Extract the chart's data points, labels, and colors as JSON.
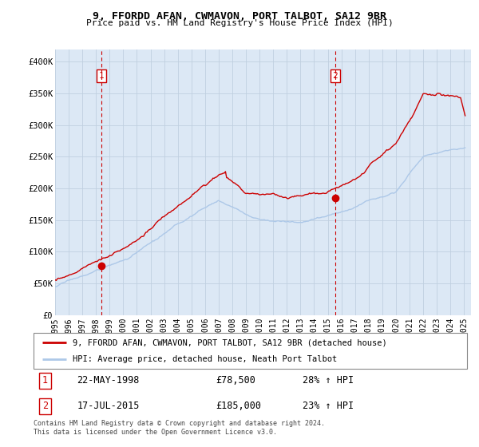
{
  "title": "9, FFORDD AFAN, CWMAVON, PORT TALBOT, SA12 9BR",
  "subtitle": "Price paid vs. HM Land Registry's House Price Index (HPI)",
  "xlim_start": 1995.0,
  "xlim_end": 2025.5,
  "ylim_min": 0,
  "ylim_max": 420000,
  "yticks": [
    0,
    50000,
    100000,
    150000,
    200000,
    250000,
    300000,
    350000,
    400000
  ],
  "ytick_labels": [
    "£0",
    "£50K",
    "£100K",
    "£150K",
    "£200K",
    "£250K",
    "£300K",
    "£350K",
    "£400K"
  ],
  "xticks": [
    1995,
    1996,
    1997,
    1998,
    1999,
    2000,
    2001,
    2002,
    2003,
    2004,
    2005,
    2006,
    2007,
    2008,
    2009,
    2010,
    2011,
    2012,
    2013,
    2014,
    2015,
    2016,
    2017,
    2018,
    2019,
    2020,
    2021,
    2022,
    2023,
    2024,
    2025
  ],
  "hpi_color": "#adc8e8",
  "price_color": "#cc0000",
  "vline_color": "#cc0000",
  "chart_bg": "#dce8f5",
  "marker1_x": 1998.38,
  "marker1_y": 78500,
  "marker2_x": 2015.54,
  "marker2_y": 185000,
  "sale1_label": "1",
  "sale1_date": "22-MAY-1998",
  "sale1_price": "£78,500",
  "sale1_hpi": "28% ↑ HPI",
  "sale2_label": "2",
  "sale2_date": "17-JUL-2015",
  "sale2_price": "£185,000",
  "sale2_hpi": "23% ↑ HPI",
  "legend_line1": "9, FFORDD AFAN, CWMAVON, PORT TALBOT, SA12 9BR (detached house)",
  "legend_line2": "HPI: Average price, detached house, Neath Port Talbot",
  "footer": "Contains HM Land Registry data © Crown copyright and database right 2024.\nThis data is licensed under the Open Government Licence v3.0.",
  "background_color": "#ffffff",
  "grid_color": "#c0d0e0"
}
